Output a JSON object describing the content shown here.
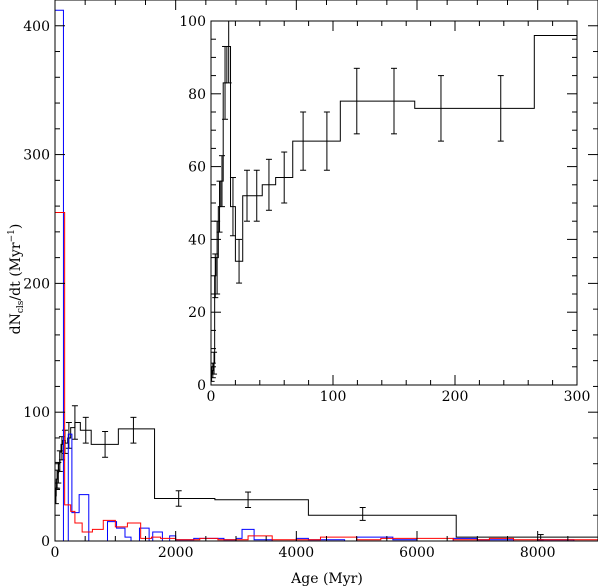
{
  "chart_data": [
    {
      "type": "step",
      "xlabel": "Age (Myr)",
      "ylabel": {
        "prefix": "dN",
        "sub": "cls",
        "mid": "/dt (Myr",
        "sup": "−1",
        "suffix": ")"
      },
      "xlim": [
        0,
        9000
      ],
      "ylim": [
        0,
        420
      ],
      "xticks": [
        0,
        2000,
        4000,
        6000,
        8000
      ],
      "yticks": [
        0,
        100,
        200,
        300,
        400
      ],
      "grid": false,
      "series": [
        {
          "color": "#000000",
          "edges": [
            0,
            20,
            40,
            60,
            80,
            100,
            130,
            170,
            210,
            260,
            330,
            420,
            600,
            1050,
            1650,
            2650,
            4200,
            6650,
            9000
          ],
          "values": [
            35,
            48,
            53,
            60,
            69,
            75,
            78,
            76,
            80,
            88,
            92,
            86,
            75,
            87,
            33,
            32,
            20,
            3
          ],
          "errors": [
            {
              "x": 15,
              "y": 35,
              "err": 6
            },
            {
              "x": 35,
              "y": 48,
              "err": 7
            },
            {
              "x": 55,
              "y": 53,
              "err": 8
            },
            {
              "x": 80,
              "y": 62,
              "err": 8
            },
            {
              "x": 115,
              "y": 72,
              "err": 9
            },
            {
              "x": 165,
              "y": 77,
              "err": 9
            },
            {
              "x": 230,
              "y": 82,
              "err": 10
            },
            {
              "x": 330,
              "y": 92,
              "err": 13
            },
            {
              "x": 510,
              "y": 86,
              "err": 10
            },
            {
              "x": 830,
              "y": 75,
              "err": 10
            },
            {
              "x": 1300,
              "y": 86,
              "err": 10
            },
            {
              "x": 2050,
              "y": 33,
              "err": 6
            },
            {
              "x": 3200,
              "y": 32,
              "err": 6
            },
            {
              "x": 5100,
              "y": 21,
              "err": 5
            },
            {
              "x": 8050,
              "y": 3,
              "err": 2
            }
          ]
        },
        {
          "color": "#0000ff",
          "edges": [
            0,
            140,
            220,
            280,
            400,
            560,
            660,
            870,
            1020,
            1160,
            1260,
            1400,
            1560,
            1620,
            1780,
            1900,
            2000,
            2300,
            2800,
            3000,
            3100,
            3300,
            3600,
            4000,
            4200,
            4800,
            5000,
            5600,
            6000,
            6600,
            7000,
            7600,
            8000,
            8600,
            9000
          ],
          "values": [
            412,
            0,
            83,
            22,
            36,
            0,
            0,
            15,
            10,
            3,
            0,
            10,
            0,
            7,
            0,
            4,
            1,
            2,
            1,
            2,
            9,
            1,
            0,
            2,
            1,
            0,
            3,
            1,
            0,
            2,
            1,
            0,
            1,
            0
          ]
        },
        {
          "color": "#ff0000",
          "edges": [
            0,
            160,
            260,
            330,
            450,
            620,
            800,
            1000,
            1200,
            1420,
            1600,
            1750,
            2000,
            2400,
            2700,
            3200,
            3600,
            4000,
            4400,
            5000,
            5400,
            6000,
            6600,
            7200,
            7600,
            8200,
            9000
          ],
          "values": [
            255,
            28,
            23,
            14,
            7,
            9,
            16,
            11,
            14,
            2,
            3,
            2,
            1,
            2,
            1,
            4,
            1,
            1,
            3,
            1,
            2,
            2,
            1,
            2,
            1,
            1
          ]
        }
      ]
    },
    {
      "type": "step",
      "xlim": [
        0,
        300
      ],
      "ylim": [
        0,
        100
      ],
      "xticks": [
        0,
        100,
        200,
        300
      ],
      "yticks": [
        0,
        20,
        40,
        60,
        80,
        100
      ],
      "grid": false,
      "series": [
        {
          "color": "#000000",
          "edges": [
            0,
            1,
            2,
            3,
            4,
            6,
            8,
            10,
            13,
            16,
            20,
            26,
            33,
            42,
            53,
            67,
            84,
            106,
            133,
            167,
            210,
            265,
            300
          ],
          "values": [
            3,
            4,
            6,
            30,
            35,
            49,
            56,
            83,
            93,
            49,
            34,
            52,
            52,
            55,
            57,
            67,
            67,
            78,
            78,
            76,
            76,
            96
          ],
          "errors": [
            {
              "x": 0.5,
              "y": 3,
              "err": 2
            },
            {
              "x": 1.5,
              "y": 4,
              "err": 2
            },
            {
              "x": 2.5,
              "y": 6,
              "err": 3
            },
            {
              "x": 3.5,
              "y": 30,
              "err": 6
            },
            {
              "x": 5,
              "y": 35,
              "err": 10
            },
            {
              "x": 7,
              "y": 49,
              "err": 7
            },
            {
              "x": 9,
              "y": 56,
              "err": 7
            },
            {
              "x": 11.5,
              "y": 83,
              "err": 10
            },
            {
              "x": 14.5,
              "y": 93,
              "err": 10
            },
            {
              "x": 18,
              "y": 49,
              "err": 8
            },
            {
              "x": 23,
              "y": 34,
              "err": 6
            },
            {
              "x": 29.5,
              "y": 52,
              "err": 7
            },
            {
              "x": 37.5,
              "y": 52,
              "err": 7
            },
            {
              "x": 47.5,
              "y": 55,
              "err": 7
            },
            {
              "x": 60,
              "y": 57,
              "err": 7
            },
            {
              "x": 75.5,
              "y": 67,
              "err": 8
            },
            {
              "x": 95,
              "y": 67,
              "err": 8
            },
            {
              "x": 119.5,
              "y": 78,
              "err": 9
            },
            {
              "x": 150,
              "y": 78,
              "err": 9
            },
            {
              "x": 188.5,
              "y": 76,
              "err": 9
            },
            {
              "x": 237.5,
              "y": 76,
              "err": 9
            }
          ]
        }
      ]
    }
  ]
}
